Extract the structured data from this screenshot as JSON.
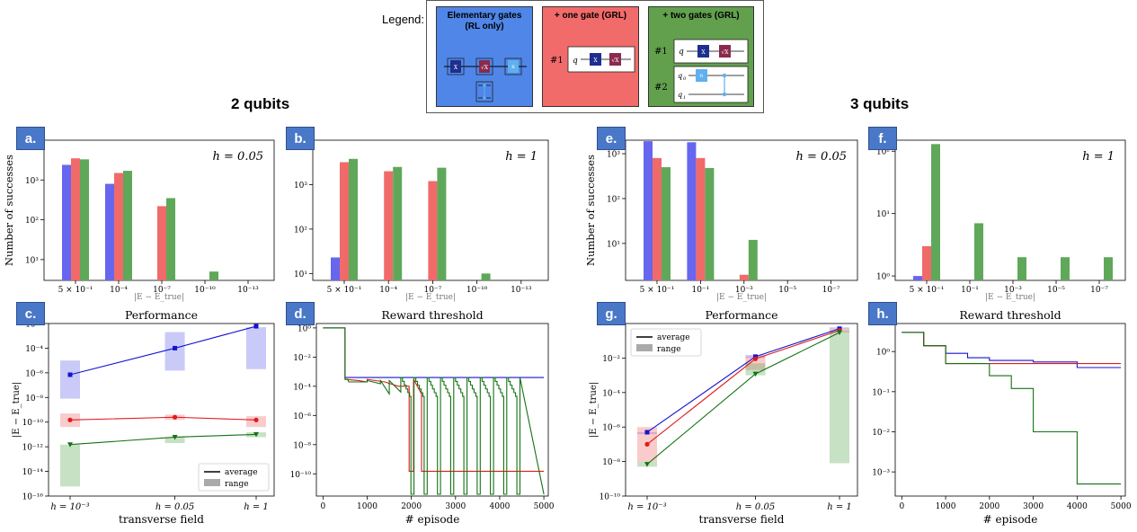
{
  "legend": {
    "label": "Legend:",
    "panels": [
      {
        "title_line1": "Elementary gates",
        "title_line2": "(RL only)",
        "color": "#4f86e8"
      },
      {
        "title_line1": "+ one gate (GRL)",
        "title_line2": "",
        "color": "#f26b6b",
        "item1": "#1"
      },
      {
        "title_line1": "+ two gates (GRL)",
        "title_line2": "",
        "color": "#62a04e",
        "item1": "#1",
        "item2": "#2"
      }
    ],
    "gate_x": "X",
    "gate_sqrtx": "√X",
    "gate_rz": "R",
    "wire_q": "q",
    "wire_q0": "q",
    "wire_q1": "q"
  },
  "sections": {
    "left": "2 qubits",
    "right": "3 qubits"
  },
  "colors": {
    "blue": "#6666ee",
    "red": "#f06a6a",
    "green": "#5fa85a",
    "line_blue": "#1414d2",
    "line_red": "#e01b1b",
    "line_green": "#137213"
  },
  "chart_data": [
    {
      "id": "a",
      "type": "bar",
      "label": "a.",
      "annotation": "h = 0.05",
      "ylabel": "Number of successes",
      "xlabel": "|E − E_true|",
      "yscale": "log",
      "ylim": [
        3,
        10000
      ],
      "yticks": [
        "10¹",
        "10²",
        "10³"
      ],
      "categories": [
        "5 × 10⁻¹",
        "10⁻⁴",
        "10⁻⁷",
        "10⁻¹⁰",
        "10⁻¹³"
      ],
      "series": [
        {
          "color_key": "blue",
          "values": [
            2400,
            800,
            null,
            null,
            null
          ]
        },
        {
          "color_key": "red",
          "values": [
            3500,
            1500,
            220,
            null,
            null
          ]
        },
        {
          "color_key": "green",
          "values": [
            3300,
            1700,
            350,
            5,
            null
          ]
        }
      ]
    },
    {
      "id": "b",
      "type": "bar",
      "label": "b.",
      "annotation": "h = 1",
      "ylabel": "",
      "xlabel": "|E − E_true|",
      "yscale": "log",
      "ylim": [
        7,
        10000
      ],
      "yticks": [
        "10¹",
        "10²",
        "10³"
      ],
      "categories": [
        "5 × 10⁻¹",
        "10⁻⁴",
        "10⁻⁷",
        "10⁻¹⁰",
        "10⁻¹³"
      ],
      "series": [
        {
          "color_key": "blue",
          "values": [
            23,
            null,
            null,
            null,
            null
          ]
        },
        {
          "color_key": "red",
          "values": [
            3200,
            2000,
            1200,
            null,
            null
          ]
        },
        {
          "color_key": "green",
          "values": [
            3800,
            2500,
            2400,
            10,
            null
          ]
        }
      ]
    },
    {
      "id": "e",
      "type": "bar",
      "label": "e.",
      "annotation": "h = 0.05",
      "ylabel": "Number of successes",
      "xlabel": "|E − E_true|",
      "yscale": "log",
      "ylim": [
        1.5,
        2000
      ],
      "yticks": [
        "10¹",
        "10²",
        "10³"
      ],
      "categories": [
        "5 × 10⁻¹",
        "10⁻¹",
        "10⁻³",
        "10⁻⁵",
        "10⁻⁷"
      ],
      "series": [
        {
          "color_key": "blue",
          "values": [
            1900,
            1800,
            null,
            null,
            null
          ]
        },
        {
          "color_key": "red",
          "values": [
            800,
            800,
            2,
            null,
            null
          ]
        },
        {
          "color_key": "green",
          "values": [
            500,
            480,
            12,
            null,
            null
          ]
        }
      ]
    },
    {
      "id": "f",
      "type": "bar",
      "label": "f.",
      "annotation": "h = 1",
      "ylabel": "",
      "xlabel": "|E − E_true|",
      "yscale": "log",
      "ylim": [
        0.85,
        150
      ],
      "yticks": [
        "10⁰",
        "10¹",
        "10²"
      ],
      "categories": [
        "5 × 10⁻¹",
        "10⁻¹",
        "10⁻³",
        "10⁻⁵",
        "10⁻⁷"
      ],
      "series": [
        {
          "color_key": "blue",
          "values": [
            1,
            null,
            null,
            null,
            null
          ]
        },
        {
          "color_key": "red",
          "values": [
            3,
            null,
            null,
            null,
            null
          ]
        },
        {
          "color_key": "green",
          "values": [
            130,
            7,
            2,
            2,
            2
          ]
        }
      ]
    },
    {
      "id": "c",
      "type": "scatter",
      "label": "c.",
      "title": "Performance",
      "ylabel": "|E − E_true|",
      "xlabel": "transverse field",
      "yscale": "log",
      "ylim": [
        1e-16,
        0.01
      ],
      "yticks": [
        "10⁻¹⁶",
        "10⁻¹⁴",
        "10⁻¹²",
        "10⁻¹⁰",
        "10⁻⁸",
        "10⁻⁶",
        "10⁻⁴",
        "10⁻²"
      ],
      "categories": [
        "h = 10⁻³",
        "h = 0.05",
        "h = 1"
      ],
      "legend": {
        "average": "average",
        "range": "range",
        "placement": "bottom-right"
      },
      "series": [
        {
          "color_key": "blue",
          "marker": "square",
          "values": [
            7e-07,
            0.0001,
            0.006
          ],
          "range_low": [
            8e-09,
            1.5e-06,
            2e-06
          ],
          "range_high": [
            1e-05,
            0.002,
            0.005
          ]
        },
        {
          "color_key": "red",
          "marker": "circle",
          "values": [
            1.5e-10,
            2.5e-10,
            1.5e-10
          ],
          "range_low": [
            4e-11,
            1.5e-10,
            4e-11
          ],
          "range_high": [
            5e-10,
            4e-10,
            3e-10
          ]
        },
        {
          "color_key": "green",
          "marker": "triangle",
          "values": [
            1.5e-12,
            6e-12,
            1e-11
          ],
          "range_low": [
            6e-16,
            2e-12,
            6e-12
          ],
          "range_high": [
            1.5e-12,
            6e-12,
            1.5e-11
          ]
        }
      ]
    },
    {
      "id": "d",
      "type": "line",
      "label": "d.",
      "title": "Reward threshold",
      "ylabel": "",
      "xlabel": "# episode",
      "yscale": "log",
      "xlim": [
        -150,
        5100
      ],
      "ylim": [
        3e-12,
        2
      ],
      "xticks": [
        0,
        1000,
        2000,
        3000,
        4000,
        5000
      ],
      "yticks": [
        "10⁰",
        "10⁻²",
        "10⁻⁴",
        "10⁻⁶",
        "10⁻⁸",
        "10⁻¹⁰"
      ]
    },
    {
      "id": "g",
      "type": "scatter",
      "label": "g.",
      "title": "Performance",
      "ylabel": "|E − E_true|",
      "xlabel": "transverse field",
      "yscale": "log",
      "ylim": [
        1e-10,
        1
      ],
      "yticks": [
        "10⁻¹⁰",
        "10⁻⁸",
        "10⁻⁶",
        "10⁻⁴",
        "10⁻²"
      ],
      "categories": [
        "h = 10⁻³",
        "h = 0.05",
        "h = 1"
      ],
      "legend": {
        "average": "average",
        "range": "range",
        "placement": "top-left"
      },
      "series": [
        {
          "color_key": "blue",
          "marker": "square",
          "values": [
            5e-07,
            0.012,
            0.5
          ],
          "range_low": [
            5e-07,
            0.01,
            0.5
          ],
          "range_high": [
            5e-07,
            0.015,
            0.6
          ]
        },
        {
          "color_key": "red",
          "marker": "circle",
          "values": [
            1e-07,
            0.009,
            0.4
          ],
          "range_low": [
            1e-08,
            0.002,
            0.3
          ],
          "range_high": [
            1e-06,
            0.012,
            0.5
          ]
        },
        {
          "color_key": "green",
          "marker": "triangle",
          "values": [
            7e-09,
            0.0012,
            0.3
          ],
          "range_low": [
            5e-09,
            0.001,
            8e-09
          ],
          "range_high": [
            1e-08,
            0.005,
            0.4
          ]
        }
      ]
    },
    {
      "id": "h",
      "type": "line",
      "label": "h.",
      "title": "Reward threshold",
      "ylabel": "",
      "xlabel": "# episode",
      "yscale": "log",
      "xlim": [
        -150,
        5100
      ],
      "ylim": [
        0.00025,
        5
      ],
      "xticks": [
        0,
        1000,
        2000,
        3000,
        4000,
        5000
      ],
      "yticks": [
        "10⁰",
        "10⁻¹",
        "10⁻²",
        "10⁻³"
      ]
    }
  ]
}
